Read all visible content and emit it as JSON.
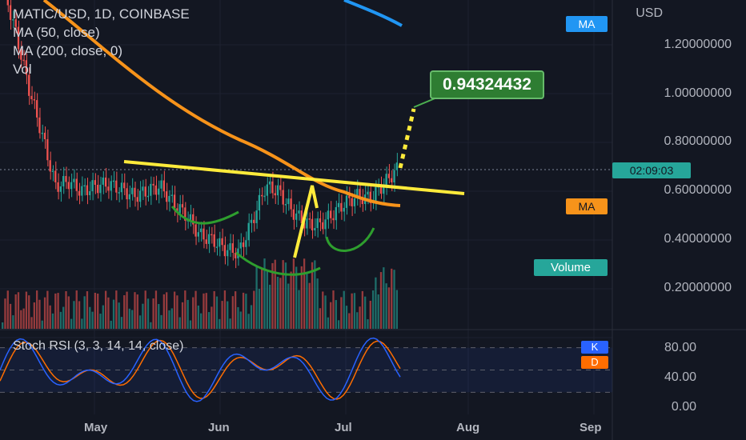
{
  "header": {
    "symbol_line": "MATIC/USD, 1D, COINBASE",
    "ma50_label": "MA (50, close)",
    "ma200_label": "MA (200, close, 0)",
    "vol_label": "Vol"
  },
  "price_axis": {
    "currency": "USD",
    "ticks": [
      "1.20000000",
      "1.00000000",
      "0.80000000",
      "0.60000000",
      "0.40000000",
      "0.20000000"
    ]
  },
  "badges": {
    "ma_blue": "MA",
    "ma_orange": "MA",
    "countdown": "02:09:03",
    "volume": "Volume",
    "target": "0.94324432"
  },
  "time_axis": {
    "months": [
      "May",
      "Jun",
      "Jul",
      "Aug",
      "Sep"
    ]
  },
  "rsi": {
    "title": "Stoch RSI (3, 3, 14, 14, close)",
    "k_label": "K",
    "d_label": "D",
    "ticks": [
      "80.00",
      "40.00",
      "0.00"
    ]
  },
  "colors": {
    "background": "#131722",
    "up": "#26a69a",
    "down": "#ef5350",
    "ma50": "#f7931a",
    "ma200": "#2196f3",
    "trendline": "#ffeb3b",
    "annotation_green": "#4caf50",
    "k_line": "#2962ff",
    "d_line": "#ff6d00"
  },
  "chart_data": {
    "type": "candlestick",
    "x_range": [
      "Apr",
      "Sep"
    ],
    "y_range": [
      0,
      1.3
    ],
    "visible_close_approx": [
      0.85,
      0.8,
      0.72,
      0.68,
      0.62,
      0.64,
      0.6,
      0.62,
      0.63,
      0.61,
      0.58,
      0.6,
      0.62,
      0.55,
      0.5,
      0.42,
      0.4,
      0.36,
      0.35,
      0.48,
      0.62,
      0.6,
      0.52,
      0.47,
      0.46,
      0.5,
      0.55,
      0.58,
      0.57,
      0.63,
      0.69
    ],
    "projection_target": 0.94324432,
    "stoch_rsi": {
      "k_ylim": [
        0,
        100
      ],
      "levels": [
        80,
        20
      ]
    }
  }
}
